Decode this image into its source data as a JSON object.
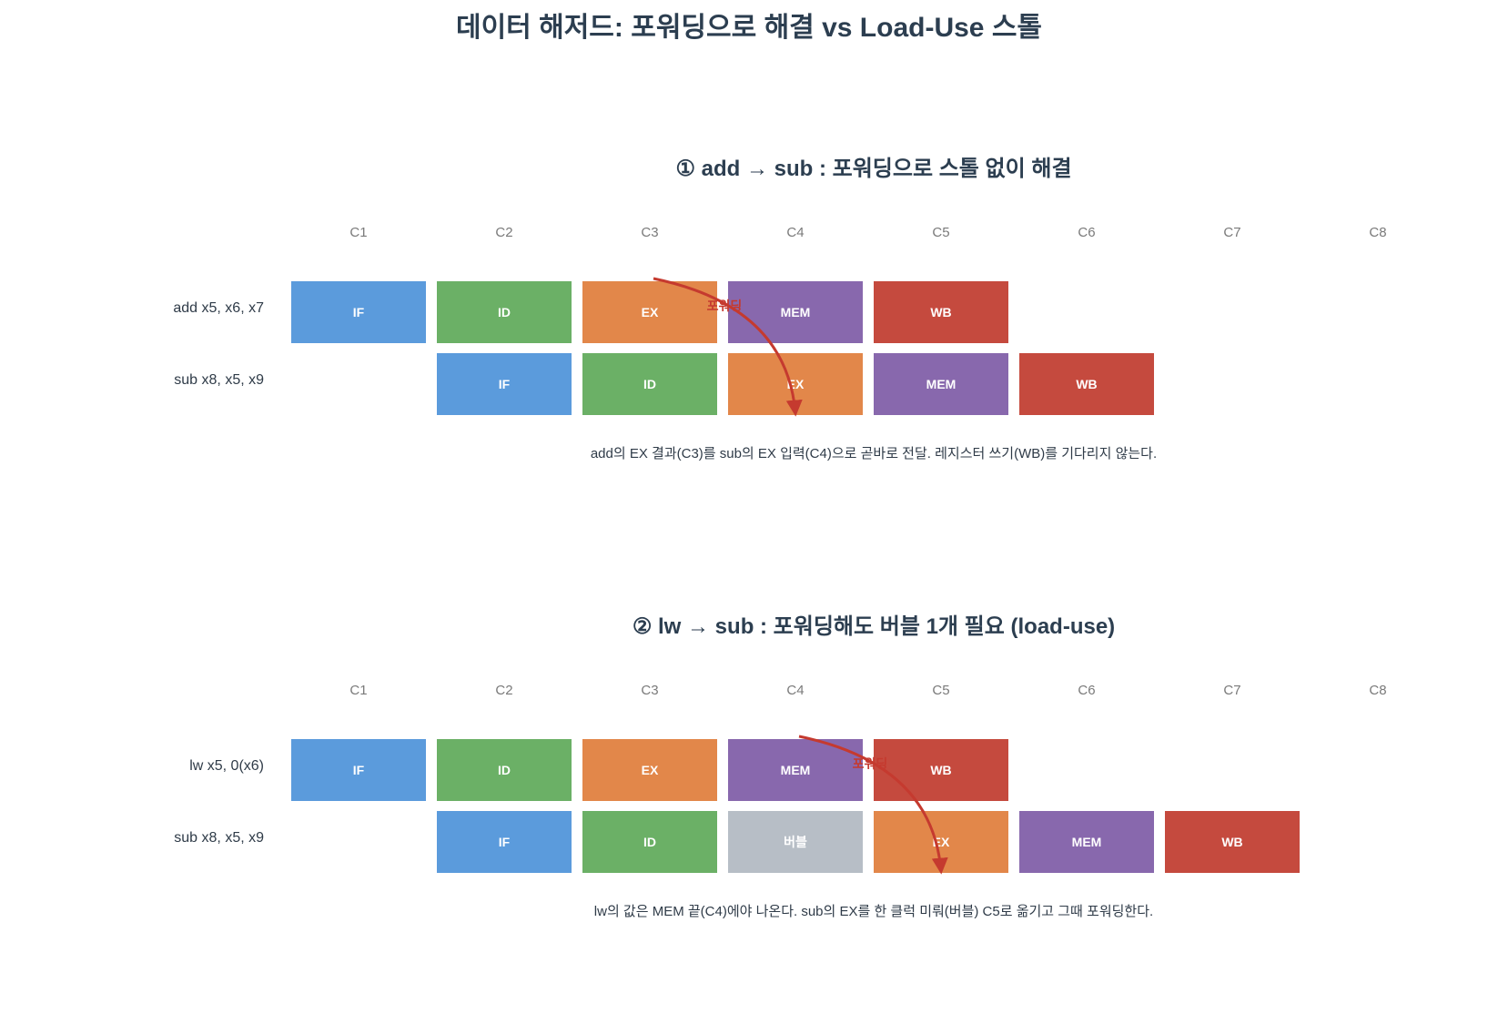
{
  "title": "데이터 해저드: 포워딩으로 해결 vs Load-Use 스톨",
  "colors": {
    "IF": "#5b9bdc",
    "ID": "#6bb066",
    "EX": "#e2874a",
    "MEM": "#8868ad",
    "WB": "#c54a3e",
    "bubble": "#b7bec6",
    "arrow": "#c53a2f",
    "title_text": "#2c3e50",
    "label_text": "#2f3b48",
    "cycle_text": "#7a7a7a"
  },
  "panels": [
    {
      "heading": "① add → sub : 포워딩으로 스톨 없이 해결",
      "cycles": [
        "C1",
        "C2",
        "C3",
        "C4",
        "C5",
        "C6",
        "C7",
        "C8"
      ],
      "rows": [
        {
          "label": "add x5, x6, x7",
          "stages": [
            {
              "cycle": 1,
              "stage": "IF",
              "text": "IF"
            },
            {
              "cycle": 2,
              "stage": "ID",
              "text": "ID"
            },
            {
              "cycle": 3,
              "stage": "EX",
              "text": "EX"
            },
            {
              "cycle": 4,
              "stage": "MEM",
              "text": "MEM"
            },
            {
              "cycle": 5,
              "stage": "WB",
              "text": "WB"
            }
          ]
        },
        {
          "label": "sub x8, x5, x9",
          "stages": [
            {
              "cycle": 2,
              "stage": "IF",
              "text": "IF"
            },
            {
              "cycle": 3,
              "stage": "ID",
              "text": "ID"
            },
            {
              "cycle": 4,
              "stage": "EX",
              "text": "EX"
            },
            {
              "cycle": 5,
              "stage": "MEM",
              "text": "MEM"
            },
            {
              "cycle": 6,
              "stage": "WB",
              "text": "WB"
            }
          ]
        }
      ],
      "forward": {
        "label": "포워딩",
        "from_cycle": 3,
        "from_row": 0,
        "to_cycle": 4,
        "to_row": 1
      },
      "note": "add의 EX 결과(C3)를 sub의 EX 입력(C4)으로 곧바로 전달. 레지스터 쓰기(WB)를 기다리지 않는다."
    },
    {
      "heading": "② lw → sub : 포워딩해도 버블 1개 필요 (load-use)",
      "cycles": [
        "C1",
        "C2",
        "C3",
        "C4",
        "C5",
        "C6",
        "C7",
        "C8"
      ],
      "rows": [
        {
          "label": "lw  x5, 0(x6)",
          "stages": [
            {
              "cycle": 1,
              "stage": "IF",
              "text": "IF"
            },
            {
              "cycle": 2,
              "stage": "ID",
              "text": "ID"
            },
            {
              "cycle": 3,
              "stage": "EX",
              "text": "EX"
            },
            {
              "cycle": 4,
              "stage": "MEM",
              "text": "MEM"
            },
            {
              "cycle": 5,
              "stage": "WB",
              "text": "WB"
            }
          ]
        },
        {
          "label": "sub x8, x5, x9",
          "stages": [
            {
              "cycle": 2,
              "stage": "IF",
              "text": "IF"
            },
            {
              "cycle": 3,
              "stage": "ID",
              "text": "ID"
            },
            {
              "cycle": 4,
              "stage": "bubble",
              "text": "버블"
            },
            {
              "cycle": 5,
              "stage": "EX",
              "text": "EX"
            },
            {
              "cycle": 6,
              "stage": "MEM",
              "text": "MEM"
            },
            {
              "cycle": 7,
              "stage": "WB",
              "text": "WB"
            }
          ]
        }
      ],
      "forward": {
        "label": "포워딩",
        "from_cycle": 4,
        "from_row": 0,
        "to_cycle": 5,
        "to_row": 1
      },
      "note": "lw의 값은 MEM 끝(C4)에야 나온다. sub의 EX를 한 클럭 미뤄(버블) C5로 옮기고 그때 포워딩한다."
    }
  ]
}
